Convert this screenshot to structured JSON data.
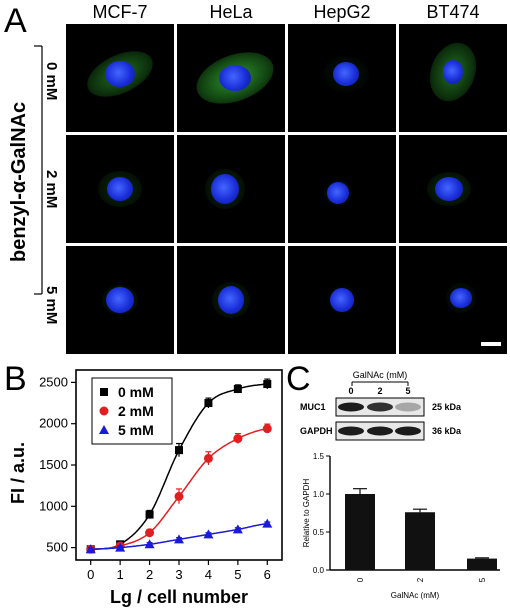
{
  "panel_a": {
    "letter": "A",
    "treatment_label": "benzyl-α-GalNAc",
    "columns": [
      "MCF-7",
      "HeLa",
      "HepG2",
      "BT474"
    ],
    "rows": [
      "0 mM",
      "2 mM",
      "5 mM"
    ]
  },
  "panel_b": {
    "letter": "B",
    "chart_data": {
      "type": "line",
      "xlabel": "Lg / cell number",
      "ylabel": "FI / a.u.",
      "xlim": [
        -0.5,
        6.5
      ],
      "ylim": [
        350,
        2650
      ],
      "xticks": [
        0,
        1,
        2,
        3,
        4,
        5,
        6
      ],
      "yticks": [
        500,
        1000,
        1500,
        2000,
        2500
      ],
      "legend_position": "top-left",
      "x": [
        0,
        1,
        2,
        3,
        4,
        5,
        6
      ],
      "series": [
        {
          "name": "0 mM",
          "marker": "square",
          "color": "#000000",
          "values": [
            480,
            540,
            900,
            1680,
            2250,
            2420,
            2480
          ],
          "errors": [
            25,
            25,
            50,
            80,
            60,
            50,
            60
          ]
        },
        {
          "name": "2 mM",
          "marker": "circle",
          "color": "#e02020",
          "values": [
            480,
            520,
            680,
            1120,
            1580,
            1820,
            1940
          ],
          "errors": [
            25,
            25,
            40,
            90,
            80,
            60,
            55
          ]
        },
        {
          "name": "5 mM",
          "marker": "triangle",
          "color": "#1a1ad8",
          "values": [
            480,
            500,
            540,
            600,
            660,
            720,
            790
          ],
          "errors": [
            20,
            20,
            20,
            20,
            20,
            20,
            20
          ]
        }
      ]
    }
  },
  "panel_c": {
    "letter": "C",
    "blot": {
      "header": "GalNAc (mM)",
      "lanes": [
        "0",
        "2",
        "5"
      ],
      "rows": [
        {
          "label": "MUC1",
          "size": "25 kDa"
        },
        {
          "label": "GAPDH",
          "size": "36 kDa"
        }
      ]
    },
    "chart_data": {
      "type": "bar",
      "categories": [
        "0",
        "2",
        "5"
      ],
      "values": [
        1.0,
        0.76,
        0.15
      ],
      "errors": [
        0.07,
        0.04,
        0.01
      ],
      "xlabel": "GalNAc (mM)",
      "ylabel": "Relative to GAPDH",
      "ylim": [
        0,
        1.5
      ],
      "yticks": [
        "0.0",
        "0.5",
        "1.0",
        "1.5"
      ]
    }
  }
}
